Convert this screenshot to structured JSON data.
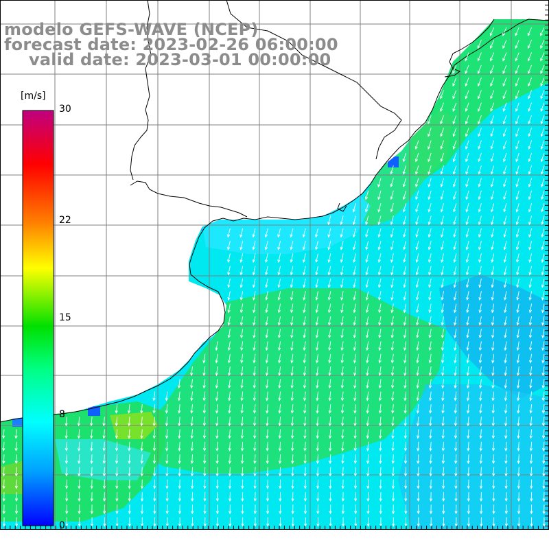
{
  "title": {
    "line1": "modelo GEFS-WAVE (NCEP)",
    "line2": "forecast date: 2023-02-26 06:00:00",
    "line3": "valid date: 2023-03-01 00:00:00"
  },
  "colorbar": {
    "unit": "[m/s]",
    "ticks": [
      {
        "label": "30",
        "value": 30
      },
      {
        "label": "22",
        "value": 22
      },
      {
        "label": "15",
        "value": 15
      },
      {
        "label": "8",
        "value": 8
      },
      {
        "label": "0",
        "value": 0
      }
    ],
    "colors": [
      "#0000ff",
      "#00a0ff",
      "#00ffff",
      "#00ff80",
      "#00e000",
      "#ffff00",
      "#ff8000",
      "#ff0000",
      "#c00080"
    ]
  },
  "map": {
    "field": "wind speed",
    "land_color": "#ffffff",
    "ocean_dominant_color": "#00e8ff",
    "arrow_color": "#ffffff",
    "coast_color": "#000000"
  }
}
